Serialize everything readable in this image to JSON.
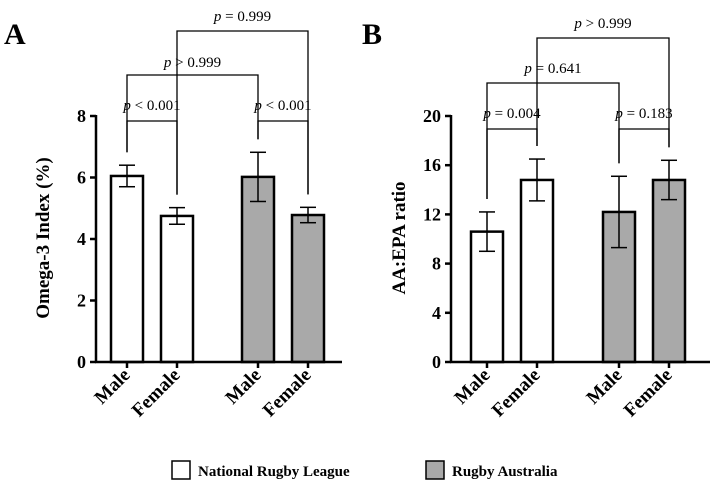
{
  "chart_data": [
    {
      "type": "bar",
      "panel": "A",
      "ylabel": "Omega-3 Index (%)",
      "xlabel": "",
      "ylim": [
        0,
        8
      ],
      "yticks": [
        0,
        2,
        4,
        6,
        8
      ],
      "groups": [
        "National Rugby League",
        "National Rugby League",
        "Rugby Australia",
        "Rugby Australia"
      ],
      "categories": [
        "Male",
        "Female",
        "Male",
        "Female"
      ],
      "values": [
        6.05,
        4.75,
        6.02,
        4.78
      ],
      "errors": [
        0.35,
        0.27,
        0.8,
        0.25
      ],
      "comparisons": [
        {
          "from": 0,
          "to": 1,
          "text": "p < 0.001"
        },
        {
          "from": 2,
          "to": 3,
          "text": "p < 0.001"
        },
        {
          "from": 0,
          "to": 2,
          "text": "p > 0.999"
        },
        {
          "from": 1,
          "to": 3,
          "text": "p = 0.999"
        }
      ]
    },
    {
      "type": "bar",
      "panel": "B",
      "ylabel": "AA:EPA ratio",
      "xlabel": "",
      "ylim": [
        0,
        20
      ],
      "yticks": [
        0,
        4,
        8,
        12,
        16,
        20
      ],
      "groups": [
        "National Rugby League",
        "National Rugby League",
        "Rugby Australia",
        "Rugby Australia"
      ],
      "categories": [
        "Male",
        "Female",
        "Male",
        "Female"
      ],
      "values": [
        10.6,
        14.8,
        12.2,
        14.8
      ],
      "errors": [
        1.6,
        1.7,
        2.9,
        1.6
      ],
      "comparisons": [
        {
          "from": 0,
          "to": 1,
          "text": "p = 0.004"
        },
        {
          "from": 2,
          "to": 3,
          "text": "p = 0.183"
        },
        {
          "from": 0,
          "to": 2,
          "text": "p = 0.641"
        },
        {
          "from": 1,
          "to": 3,
          "text": "p > 0.999"
        }
      ]
    }
  ],
  "legend": [
    {
      "label": "National Rugby League",
      "color": "#ffffff"
    },
    {
      "label": "Rugby Australia",
      "color": "#a9a9a9"
    }
  ]
}
